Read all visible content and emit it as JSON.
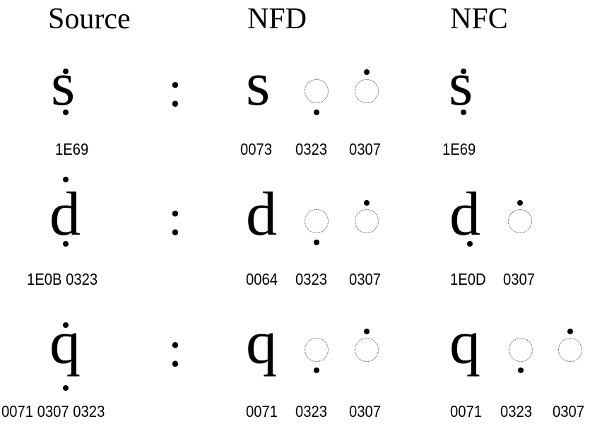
{
  "headers": {
    "source": "Source",
    "nfd": "NFD",
    "nfc": "NFC"
  },
  "separator": ":",
  "rows": [
    {
      "source": {
        "letter": "s",
        "codes": "1E69"
      },
      "nfd": {
        "letter": "s",
        "codes": [
          "0073",
          "0323",
          "0307"
        ]
      },
      "nfc": {
        "letter": "s",
        "codes": [
          "1E69"
        ]
      }
    },
    {
      "source": {
        "letter": "d",
        "codes": "1E0B  0323"
      },
      "nfd": {
        "letter": "d",
        "codes": [
          "0064",
          "0323",
          "0307"
        ]
      },
      "nfc": {
        "letter": "d",
        "codes": [
          "1E0D",
          "0307"
        ]
      }
    },
    {
      "source": {
        "letter": "q",
        "codes": "0071  0307  0323"
      },
      "nfd": {
        "letter": "q",
        "codes": [
          "0071",
          "0323",
          "0307"
        ]
      },
      "nfc": {
        "letter": "q",
        "codes": [
          "0071",
          "0323",
          "0307"
        ]
      }
    }
  ]
}
